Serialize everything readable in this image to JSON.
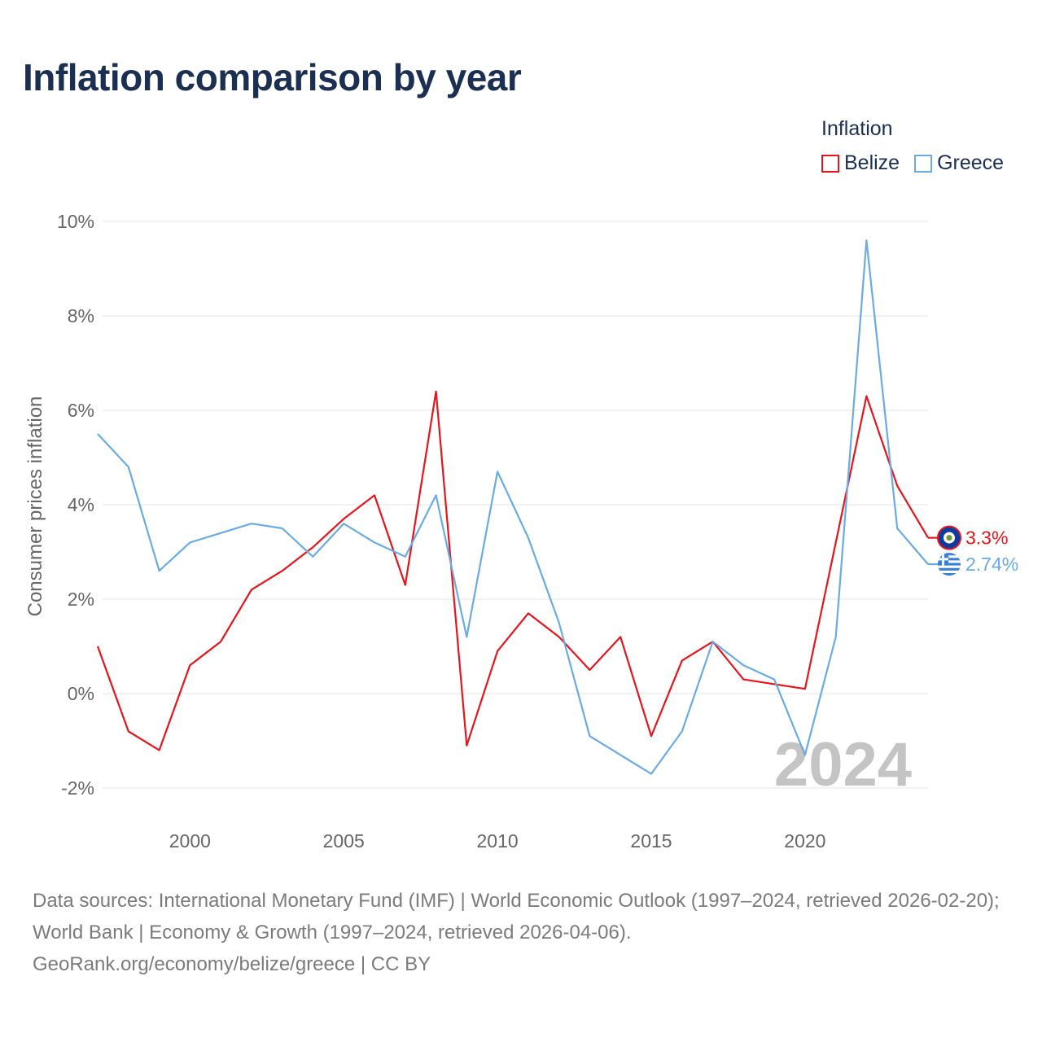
{
  "title": "Inflation comparison by year",
  "legend": {
    "title": "Inflation",
    "items": [
      {
        "label": "Belize",
        "color": "#e8141b"
      },
      {
        "label": "Greece",
        "color": "#6aabe3"
      }
    ]
  },
  "watermark_year": "2024",
  "footer": {
    "sources": "Data sources: International Monetary Fund (IMF) | World Economic Outlook (1997–2024, retrieved 2026-02-20); World Bank | Economy & Growth (1997–2024, retrieved 2026-04-06).",
    "credit": "GeoRank.org/economy/belize/greece | CC BY"
  },
  "chart_data": {
    "type": "line",
    "title": "Inflation comparison by year",
    "xlabel": "",
    "ylabel": "Consumer prices inflation",
    "xlim": [
      1997,
      2024
    ],
    "ylim": [
      -2,
      10
    ],
    "x_ticks": [
      2000,
      2005,
      2010,
      2015,
      2020
    ],
    "y_ticks": [
      -2,
      0,
      2,
      4,
      6,
      8,
      10
    ],
    "y_tick_labels": [
      "-2%",
      "0%",
      "2%",
      "4%",
      "6%",
      "8%",
      "10%"
    ],
    "grid": true,
    "legend_position": "top-right",
    "x": [
      1997,
      1998,
      1999,
      2000,
      2001,
      2002,
      2003,
      2004,
      2005,
      2006,
      2007,
      2008,
      2009,
      2010,
      2011,
      2012,
      2013,
      2014,
      2015,
      2016,
      2017,
      2018,
      2019,
      2020,
      2021,
      2022,
      2023,
      2024
    ],
    "series": [
      {
        "name": "Belize",
        "color": "#e8141b",
        "end_label": "3.3%",
        "flag": "belize-flag-icon",
        "values": [
          1.0,
          -0.8,
          -1.2,
          0.6,
          1.1,
          2.2,
          2.6,
          3.1,
          3.7,
          4.2,
          2.3,
          6.4,
          -1.1,
          0.9,
          1.7,
          1.2,
          0.5,
          1.2,
          -0.9,
          0.7,
          1.1,
          0.3,
          0.2,
          0.1,
          3.2,
          6.3,
          4.4,
          3.3
        ]
      },
      {
        "name": "Greece",
        "color": "#6aabe3",
        "end_label": "2.74%",
        "flag": "greece-flag-icon",
        "values": [
          5.5,
          4.8,
          2.6,
          3.2,
          3.4,
          3.6,
          3.5,
          2.9,
          3.6,
          3.2,
          2.9,
          4.2,
          1.2,
          4.7,
          3.3,
          1.5,
          -0.9,
          -1.3,
          -1.7,
          -0.8,
          1.1,
          0.6,
          0.3,
          -1.3,
          1.2,
          9.6,
          3.5,
          2.74
        ]
      }
    ]
  }
}
